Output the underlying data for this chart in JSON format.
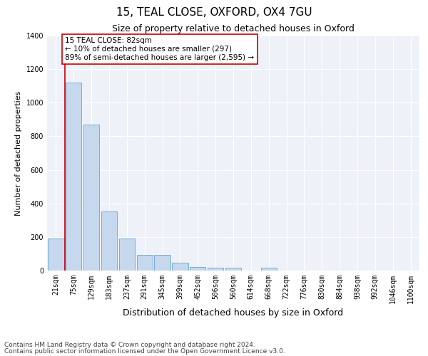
{
  "title1": "15, TEAL CLOSE, OXFORD, OX4 7GU",
  "title2": "Size of property relative to detached houses in Oxford",
  "xlabel": "Distribution of detached houses by size in Oxford",
  "ylabel": "Number of detached properties",
  "categories": [
    "21sqm",
    "75sqm",
    "129sqm",
    "183sqm",
    "237sqm",
    "291sqm",
    "345sqm",
    "399sqm",
    "452sqm",
    "506sqm",
    "560sqm",
    "614sqm",
    "668sqm",
    "722sqm",
    "776sqm",
    "830sqm",
    "884sqm",
    "938sqm",
    "992sqm",
    "1046sqm",
    "1100sqm"
  ],
  "values": [
    192,
    1120,
    870,
    352,
    190,
    95,
    95,
    47,
    20,
    18,
    18,
    0,
    15,
    0,
    0,
    0,
    0,
    0,
    0,
    0,
    0
  ],
  "bar_color": "#c5d8ee",
  "bar_edge_color": "#7aacd4",
  "vline_x": 0.5,
  "vline_color": "#cc0000",
  "annotation_text": "15 TEAL CLOSE: 82sqm\n← 10% of detached houses are smaller (297)\n89% of semi-detached houses are larger (2,595) →",
  "annotation_box_color": "#ffffff",
  "annotation_box_edge": "#cc0000",
  "ylim": [
    0,
    1400
  ],
  "yticks": [
    0,
    200,
    400,
    600,
    800,
    1000,
    1200,
    1400
  ],
  "footer1": "Contains HM Land Registry data © Crown copyright and database right 2024.",
  "footer2": "Contains public sector information licensed under the Open Government Licence v3.0.",
  "bg_color": "#eef2f8",
  "title1_fontsize": 11,
  "title2_fontsize": 9,
  "xlabel_fontsize": 9,
  "ylabel_fontsize": 8,
  "tick_fontsize": 7,
  "annot_fontsize": 7.5,
  "footer_fontsize": 6.5
}
